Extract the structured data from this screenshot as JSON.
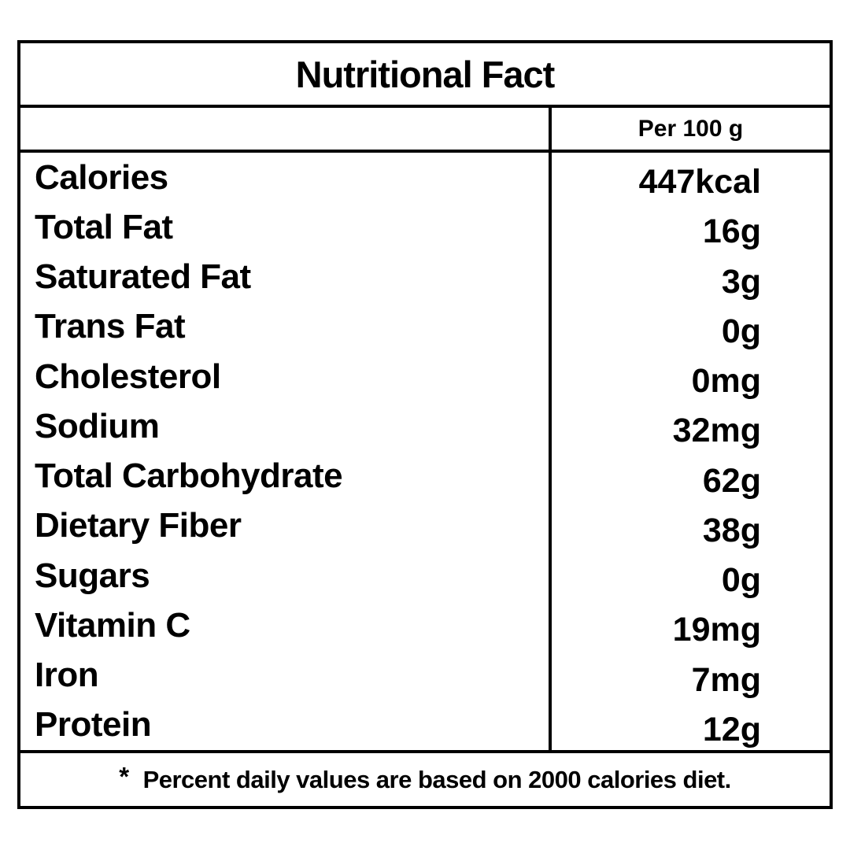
{
  "label": {
    "title": "Nutritional Fact",
    "column_header": "Per 100 g",
    "footnote": {
      "marker": "*",
      "text": "Percent daily values are based on 2000 calories diet."
    }
  },
  "rows": [
    {
      "label": "Calories",
      "value": "447kcal"
    },
    {
      "label": "Total Fat",
      "value": "16g"
    },
    {
      "label": "Saturated Fat",
      "value": "3g"
    },
    {
      "label": "Trans Fat",
      "value": "0g"
    },
    {
      "label": "Cholesterol",
      "value": "0mg"
    },
    {
      "label": "Sodium",
      "value": "32mg"
    },
    {
      "label": "Total Carbohydrate",
      "value": "62g"
    },
    {
      "label": "Dietary Fiber",
      "value": "38g"
    },
    {
      "label": "Sugars",
      "value": "0g"
    },
    {
      "label": "Vitamin C",
      "value": "19mg"
    },
    {
      "label": "Iron",
      "value": "7mg"
    },
    {
      "label": "Protein",
      "value": "12g"
    }
  ],
  "colors": {
    "text": "#000000",
    "border": "#000000",
    "background": "#ffffff"
  }
}
